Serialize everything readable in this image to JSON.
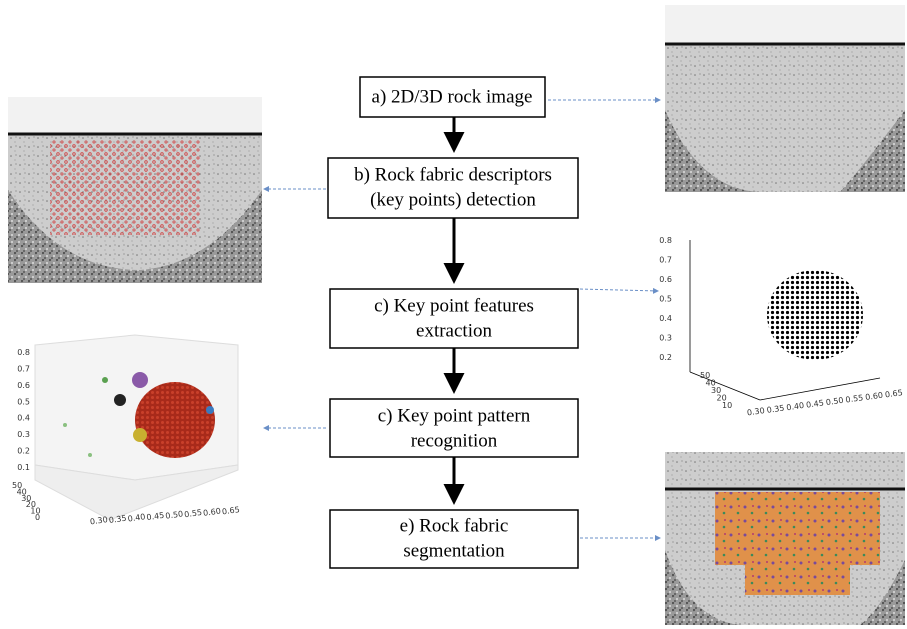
{
  "steps": [
    {
      "lines": [
        "a) 2D/3D rock image"
      ]
    },
    {
      "lines": [
        "b) Rock fabric descriptors",
        "(key points) detection"
      ]
    },
    {
      "lines": [
        "c) Key point features",
        "extraction"
      ]
    },
    {
      "lines": [
        "c) Key point pattern",
        "recognition"
      ]
    },
    {
      "lines": [
        "e) Rock fabric segmentation"
      ],
      "note": null
    }
  ],
  "plots": [
    {
      "z_ticks": [
        "0.8",
        "0.7",
        "0.6",
        "0.5",
        "0.4",
        "0.3",
        "0.2",
        "0.1"
      ],
      "y_ticks": [
        "50",
        "40",
        "30",
        "20",
        "10",
        "0"
      ],
      "x_ticks": [
        "0.30",
        "0.35",
        "0.40",
        "0.45",
        "0.50",
        "0.55",
        "0.60",
        "0.65"
      ]
    },
    {
      "z_ticks": [
        "0.8",
        "0.7",
        "0.6",
        "0.5",
        "0.4",
        "0.3",
        "0.2"
      ],
      "y_ticks": [
        "50",
        "40",
        "30",
        "20",
        "10"
      ],
      "x_ticks": [
        "0.30",
        "0.35",
        "0.40",
        "0.45",
        "0.50",
        "0.55",
        "0.60",
        "0.65"
      ]
    }
  ]
}
